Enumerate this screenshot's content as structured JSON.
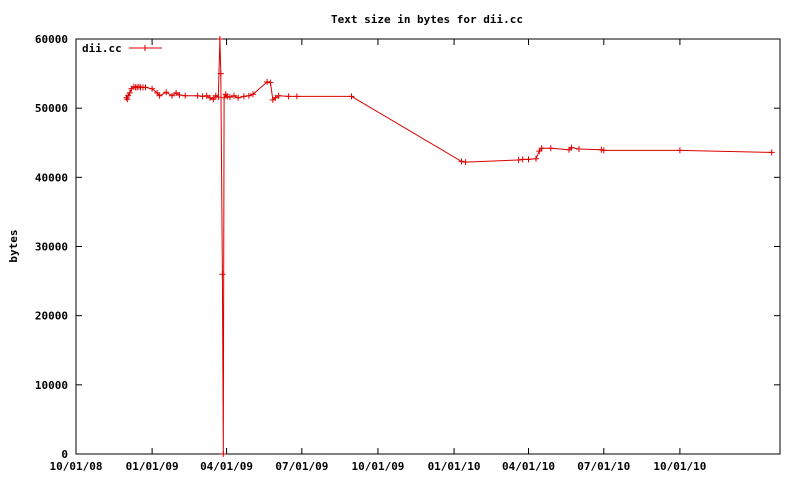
{
  "chart_data": {
    "type": "line",
    "title": "Text size in bytes for dii.cc",
    "ylabel": "bytes",
    "xlabel": "",
    "xlim": [
      "2008-10-01",
      "2011-01-30"
    ],
    "ylim": [
      0,
      60000
    ],
    "x_ticks": [
      {
        "date": "2008-10-01",
        "label": "10/01/08"
      },
      {
        "date": "2009-01-01",
        "label": "01/01/09"
      },
      {
        "date": "2009-04-01",
        "label": "04/01/09"
      },
      {
        "date": "2009-07-01",
        "label": "07/01/09"
      },
      {
        "date": "2009-10-01",
        "label": "10/01/09"
      },
      {
        "date": "2010-01-01",
        "label": "01/01/10"
      },
      {
        "date": "2010-04-01",
        "label": "04/01/10"
      },
      {
        "date": "2010-07-01",
        "label": "07/01/10"
      },
      {
        "date": "2010-10-01",
        "label": "10/01/10"
      }
    ],
    "y_ticks": [
      0,
      10000,
      20000,
      30000,
      40000,
      50000,
      60000
    ],
    "grid": false,
    "legend_position": "top-left",
    "series": [
      {
        "name": "dii.cc",
        "color": "#dd0000",
        "marker": "plus",
        "points": [
          [
            "2008-12-01",
            51500
          ],
          [
            "2008-12-02",
            51300
          ],
          [
            "2008-12-03",
            51800
          ],
          [
            "2008-12-05",
            52200
          ],
          [
            "2008-12-07",
            52800
          ],
          [
            "2008-12-10",
            53100
          ],
          [
            "2008-12-12",
            53000
          ],
          [
            "2008-12-14",
            53000
          ],
          [
            "2008-12-16",
            53100
          ],
          [
            "2008-12-18",
            53000
          ],
          [
            "2008-12-21",
            53000
          ],
          [
            "2008-12-24",
            53000
          ],
          [
            "2009-01-01",
            52800
          ],
          [
            "2009-01-07",
            52200
          ],
          [
            "2009-01-10",
            51800
          ],
          [
            "2009-01-18",
            52300
          ],
          [
            "2009-01-25",
            51800
          ],
          [
            "2009-01-30",
            52200
          ],
          [
            "2009-02-03",
            51900
          ],
          [
            "2009-02-10",
            51800
          ],
          [
            "2009-02-25",
            51800
          ],
          [
            "2009-03-03",
            51700
          ],
          [
            "2009-03-08",
            51800
          ],
          [
            "2009-03-12",
            51500
          ],
          [
            "2009-03-16",
            51300
          ],
          [
            "2009-03-19",
            51800
          ],
          [
            "2009-03-22",
            51600
          ],
          [
            "2009-03-24",
            60000
          ],
          [
            "2009-03-25",
            55000
          ],
          [
            "2009-03-27",
            26000
          ],
          [
            "2009-03-28",
            0
          ],
          [
            "2009-03-29",
            51500
          ],
          [
            "2009-03-31",
            52000
          ],
          [
            "2009-04-02",
            51700
          ],
          [
            "2009-04-05",
            51600
          ],
          [
            "2009-04-10",
            51800
          ],
          [
            "2009-04-15",
            51500
          ],
          [
            "2009-04-22",
            51700
          ],
          [
            "2009-04-28",
            51800
          ],
          [
            "2009-05-03",
            52000
          ],
          [
            "2009-05-20",
            53800
          ],
          [
            "2009-05-24",
            53700
          ],
          [
            "2009-05-27",
            51200
          ],
          [
            "2009-05-30",
            51500
          ],
          [
            "2009-06-03",
            51800
          ],
          [
            "2009-06-15",
            51700
          ],
          [
            "2009-06-25",
            51700
          ],
          [
            "2009-08-30",
            51700
          ],
          [
            "2010-01-10",
            42300
          ],
          [
            "2010-01-15",
            42200
          ],
          [
            "2010-03-20",
            42500
          ],
          [
            "2010-03-25",
            42600
          ],
          [
            "2010-04-01",
            42600
          ],
          [
            "2010-04-10",
            42700
          ],
          [
            "2010-04-14",
            43800
          ],
          [
            "2010-04-17",
            44200
          ],
          [
            "2010-04-28",
            44200
          ],
          [
            "2010-05-20",
            44000
          ],
          [
            "2010-05-23",
            44300
          ],
          [
            "2010-06-01",
            44100
          ],
          [
            "2010-06-28",
            44000
          ],
          [
            "2010-07-01",
            43900
          ],
          [
            "2010-10-01",
            43900
          ],
          [
            "2011-01-20",
            43600
          ]
        ]
      }
    ]
  }
}
